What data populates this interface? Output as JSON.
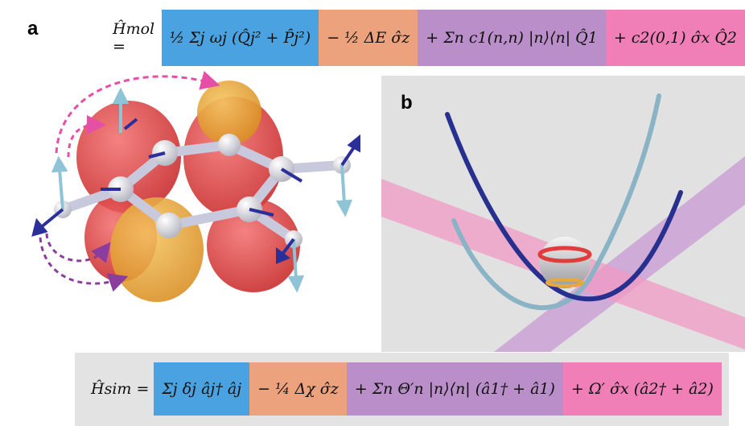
{
  "figure": {
    "label_a": "a",
    "label_b": "b",
    "eq_mol": {
      "lhs": "Ĥmol =",
      "terms": [
        "½ Σj ωj (Q̂j² + P̂j²)",
        "− ½ ΔE σ̂z",
        "+ Σn c1(n,n) |n⟩⟨n| Q̂1",
        "+ c2(0,1) σ̂x Q̂2"
      ]
    },
    "eq_sim": {
      "lhs": "Ĥsim =",
      "terms": [
        "Σj δj âj† âj",
        "− ¼ Δχ σ̂z",
        "+ Σn Θ′n |n⟩⟨n| (â1† + â1)",
        "+ Ω′ σ̂x (â2† + â2)"
      ]
    },
    "colors": {
      "blue": "#4aa3e0",
      "orange": "#eca27c",
      "purple": "#b98ec9",
      "pink": "#f07fb8",
      "orbital_red": "#e23b3b",
      "orbital_orange": "#e9a93a",
      "arrow_light_blue": "#8fc3d6",
      "arrow_dark_blue": "#2a2f9a",
      "pink_arrow": "#e54fa6",
      "purple_arrow": "#8a3d9c",
      "potential_dark": "#27308f",
      "potential_light": "#8ab3c6"
    }
  }
}
